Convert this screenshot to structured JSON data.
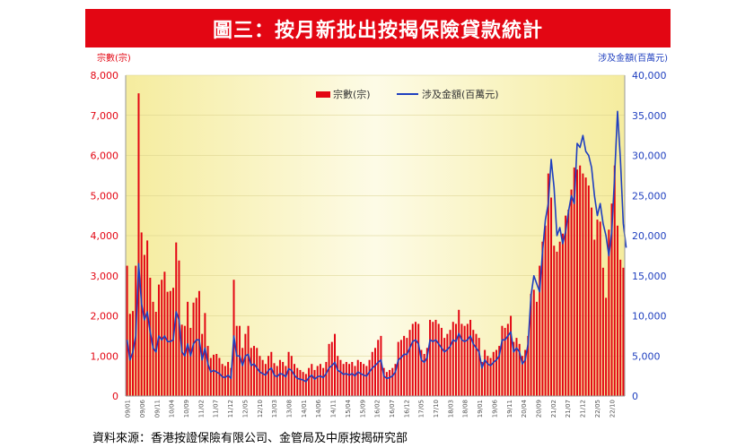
{
  "title": "圖三：按月新批出按揭保險貸款統計",
  "source": "資料來源：香港按證保險有限公司、金管局及中原按揭研究部",
  "colors": {
    "bar": "#e30613",
    "line": "#1f3fbf",
    "banner": "#e30613"
  },
  "chart_data": {
    "type": "bar",
    "title": "",
    "y_left_label": "宗數(宗)",
    "y_right_label": "涉及金額(百萬元)",
    "y_left_range": [
      0,
      8000
    ],
    "y_right_range": [
      0,
      40000
    ],
    "y_left_ticks": [
      "0",
      "1,000",
      "2,000",
      "3,000",
      "4,000",
      "5,000",
      "6,000",
      "7,000",
      "8,000"
    ],
    "y_right_ticks": [
      "0",
      "5,000",
      "10,000",
      "15,000",
      "20,000",
      "25,000",
      "30,000",
      "35,000",
      "40,000"
    ],
    "legend": {
      "bars": "宗數(宗)",
      "line": "涉及金額(百萬元)",
      "placement": "top-center"
    },
    "x_tick_labels": [
      "09/01",
      "09/06",
      "09/11",
      "10/04",
      "10/09",
      "11/02",
      "11/07",
      "11/12",
      "12/05",
      "12/10",
      "13/03",
      "13/08",
      "14/01",
      "14/06",
      "14/11",
      "15/04",
      "15/09",
      "16/02",
      "16/07",
      "16/12",
      "17/05",
      "17/10",
      "18/03",
      "18/08",
      "19/01",
      "19/06",
      "19/11",
      "20/04",
      "20/09",
      "21/02",
      "21/07",
      "21/12",
      "22/05",
      "22/10"
    ],
    "series": [
      {
        "name": "宗數(宗)",
        "kind": "bar",
        "values": [
          3250,
          2050,
          2120,
          3250,
          7550,
          4080,
          3520,
          3880,
          2950,
          2350,
          2100,
          2780,
          2900,
          3100,
          2600,
          2620,
          2700,
          3830,
          3380,
          1780,
          1750,
          2350,
          1700,
          2330,
          2450,
          2620,
          1550,
          2070,
          1250,
          950,
          1030,
          1050,
          950,
          800,
          750,
          850,
          700,
          2900,
          1750,
          1750,
          1200,
          1550,
          1750,
          1200,
          1250,
          1200,
          1000,
          900,
          800,
          1000,
          1100,
          820,
          750,
          900,
          850,
          750,
          1100,
          1000,
          800,
          700,
          650,
          600,
          550,
          700,
          800,
          650,
          750,
          800,
          700,
          850,
          1300,
          1350,
          1550,
          1000,
          900,
          800,
          850,
          800,
          850,
          750,
          900,
          850,
          800,
          750,
          900,
          1100,
          1200,
          1400,
          1500,
          700,
          600,
          650,
          700,
          800,
          1350,
          1400,
          1500,
          1450,
          1650,
          1800,
          1850,
          1800,
          1150,
          1050,
          1200,
          1900,
          1850,
          1900,
          1800,
          1700,
          1450,
          1550,
          1650,
          1850,
          1800,
          2150,
          1800,
          1750,
          1800,
          1900,
          1650,
          1550,
          1450,
          850,
          1150,
          1000,
          950,
          1100,
          1150,
          1250,
          1750,
          1700,
          1800,
          2000,
          1350,
          1450,
          1300,
          1000,
          1150,
          1500,
          2550,
          2650,
          2350,
          3250,
          3850,
          4250,
          5550,
          4950,
          3750,
          3600,
          3850,
          4050,
          4500,
          4650,
          5150,
          5700,
          5650,
          5750,
          5550,
          5450,
          5250,
          4700,
          3900,
          4400,
          4350,
          3200,
          2450,
          4150,
          4800,
          5750,
          4250,
          3400,
          3200
        ]
      },
      {
        "name": "涉及金額(百萬元)",
        "kind": "line",
        "values": [
          7000,
          4500,
          5500,
          7500,
          16500,
          11500,
          9500,
          10500,
          8000,
          6000,
          5500,
          7500,
          7000,
          7500,
          6800,
          6800,
          7000,
          10500,
          9500,
          5500,
          5000,
          6500,
          5000,
          6500,
          7000,
          7000,
          4500,
          6000,
          4000,
          3000,
          3200,
          3000,
          2800,
          2400,
          2300,
          2600,
          2200,
          7500,
          5000,
          5000,
          3800,
          5000,
          5200,
          3800,
          4000,
          3500,
          3000,
          2800,
          2600,
          3200,
          3500,
          2600,
          2400,
          2800,
          2700,
          2400,
          3400,
          3200,
          2600,
          2200,
          2100,
          2000,
          1800,
          2300,
          2600,
          2100,
          2400,
          2500,
          2300,
          2800,
          3500,
          3800,
          4200,
          3200,
          3000,
          2700,
          2800,
          2600,
          2800,
          2500,
          3000,
          2800,
          2600,
          2500,
          3000,
          3500,
          3800,
          4200,
          4500,
          2500,
          2200,
          2300,
          2500,
          3000,
          4500,
          4800,
          5200,
          5200,
          6000,
          6800,
          7000,
          6500,
          4500,
          4200,
          4800,
          7000,
          6800,
          7000,
          6500,
          6000,
          5500,
          5800,
          6200,
          7000,
          6800,
          7800,
          7000,
          6800,
          7000,
          7500,
          6500,
          6000,
          5500,
          3500,
          4500,
          4000,
          3800,
          4200,
          4500,
          5000,
          7000,
          7000,
          7500,
          8000,
          5500,
          6000,
          5500,
          4000,
          4500,
          6500,
          12500,
          15000,
          14000,
          13000,
          18000,
          22000,
          24000,
          29500,
          26000,
          20000,
          21000,
          19000,
          20500,
          23000,
          25000,
          24000,
          31500,
          31000,
          32500,
          30500,
          30000,
          28500,
          25000,
          22500,
          24000,
          21500,
          20000,
          17500,
          20500,
          27500,
          35500,
          29500,
          21500,
          18500
        ]
      }
    ]
  }
}
